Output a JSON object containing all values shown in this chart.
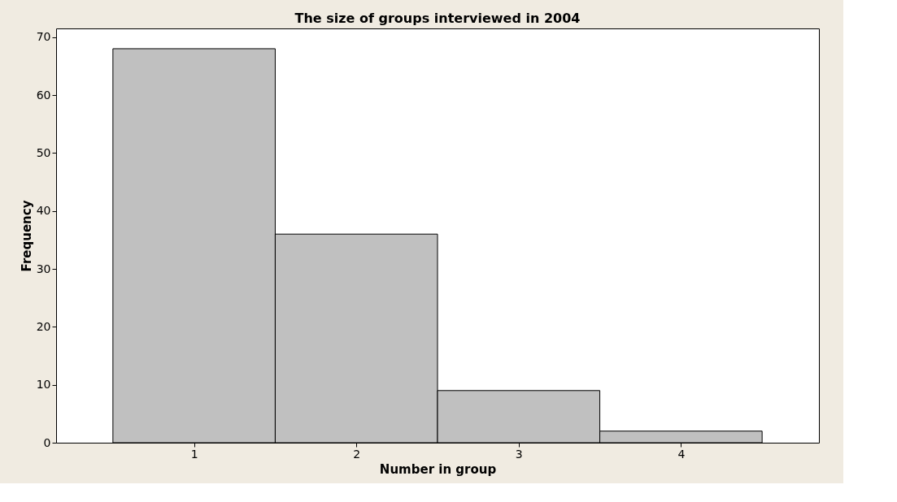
{
  "chart_data": {
    "type": "histogram",
    "title": "The size of groups interviewed in 2004",
    "xlabel": "Number in group",
    "ylabel": "Frequency",
    "bins": [
      0.5,
      1.5,
      2.5,
      3.5,
      4.5
    ],
    "values": [
      68,
      36,
      9,
      2
    ],
    "color": "#c0c0c0",
    "xlim": [
      0.15,
      4.85
    ],
    "xticks": [
      1,
      2,
      3,
      4
    ],
    "ylim": [
      0,
      71.5
    ],
    "yticks": [
      0,
      10,
      20,
      30,
      40,
      50,
      60,
      70
    ],
    "grid": false
  }
}
